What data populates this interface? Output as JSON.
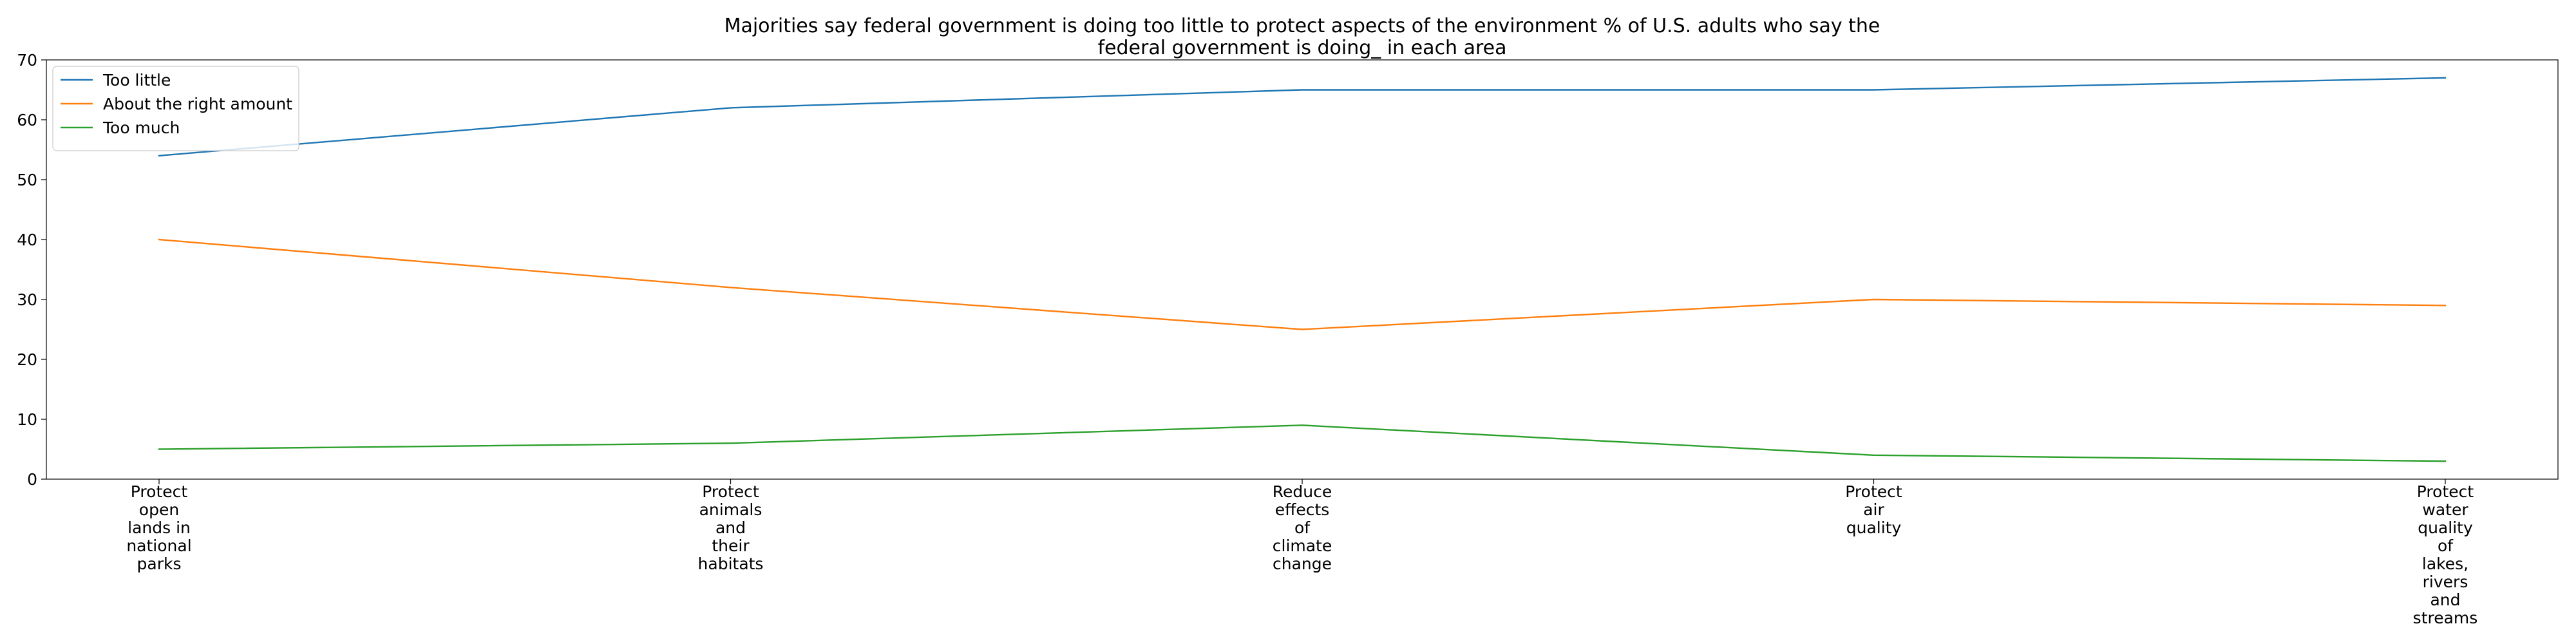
{
  "chart_data": {
    "type": "line",
    "title": "Majorities say federal government is doing too little to protect aspects of the environment % of U.S. adults who say the federal government is doing_ in each area",
    "title_lines": [
      "Majorities say federal government is doing too little to protect aspects of the environment % of U.S. adults who say the",
      "federal government is doing_ in each area"
    ],
    "xlabel": "",
    "ylabel": "",
    "categories": [
      "Protect open lands in national parks",
      "Protect animals and their habitats",
      "Reduce effects of climate change",
      "Protect air quality",
      "Protect water quality of lakes, rivers and streams"
    ],
    "category_lines": [
      [
        "Protect",
        "open",
        "lands in",
        "national",
        "parks"
      ],
      [
        "Protect",
        "animals",
        "and",
        "their",
        "habitats"
      ],
      [
        "Reduce",
        "effects",
        "of",
        "climate",
        "change"
      ],
      [
        "Protect",
        "air",
        "quality"
      ],
      [
        "Protect",
        "water",
        "quality",
        "of",
        "lakes,",
        "rivers",
        "and",
        "streams"
      ]
    ],
    "series": [
      {
        "name": "Too little",
        "color": "#1f77b4",
        "values": [
          54,
          62,
          65,
          65,
          67
        ]
      },
      {
        "name": "About the right amount",
        "color": "#ff7f0e",
        "values": [
          40,
          32,
          25,
          30,
          29
        ]
      },
      {
        "name": "Too much",
        "color": "#2ca02c",
        "values": [
          5,
          6,
          9,
          4,
          3
        ]
      }
    ],
    "ylim": [
      0,
      70
    ],
    "yticks": [
      0,
      10,
      20,
      30,
      40,
      50,
      60,
      70
    ],
    "grid": false,
    "legend_position": "upper-left"
  }
}
